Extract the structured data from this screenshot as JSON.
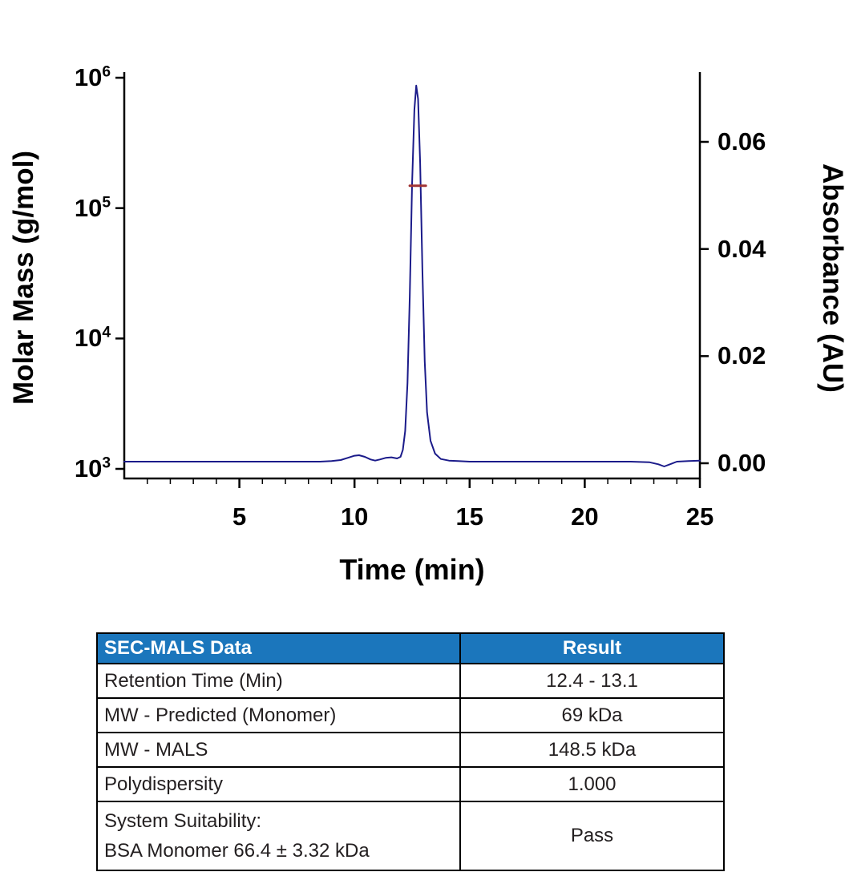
{
  "chart_data": {
    "type": "line",
    "title": "",
    "xlabel": "Time (min)",
    "ylabel_left": "Molar Mass (g/mol)",
    "ylabel_right": "Absorbance (AU)",
    "x_range": [
      0,
      25
    ],
    "x_ticks": [
      5,
      10,
      15,
      20,
      25
    ],
    "grid": false,
    "legend": "none",
    "left_axis": {
      "scale": "log",
      "range": [
        1000,
        1000000
      ],
      "ticks": [
        {
          "value": 1000,
          "base": "10",
          "sup": "3"
        },
        {
          "value": 10000,
          "base": "10",
          "sup": "4"
        },
        {
          "value": 100000,
          "base": "10",
          "sup": "5"
        },
        {
          "value": 1000000,
          "base": "10",
          "sup": "6"
        }
      ]
    },
    "right_axis": {
      "scale": "linear",
      "range": [
        0,
        0.072
      ],
      "ticks": [
        {
          "value": 0.0,
          "label": "0.00"
        },
        {
          "value": 0.02,
          "label": "0.02"
        },
        {
          "value": 0.04,
          "label": "0.04"
        },
        {
          "value": 0.06,
          "label": "0.06"
        }
      ]
    },
    "series": [
      {
        "name": "absorbance-uv-trace",
        "axis": "right",
        "color": "#1b1b8a",
        "width": 2,
        "x": [
          0,
          1,
          2,
          3,
          4,
          5,
          6,
          7,
          8,
          8.5,
          9,
          9.4,
          9.7,
          10.0,
          10.2,
          10.45,
          10.7,
          10.9,
          11.1,
          11.35,
          11.6,
          11.85,
          12.0,
          12.1,
          12.2,
          12.3,
          12.4,
          12.5,
          12.6,
          12.68,
          12.76,
          12.85,
          12.95,
          13.05,
          13.15,
          13.3,
          13.5,
          13.75,
          14.1,
          14.5,
          15,
          16,
          17,
          18,
          19,
          20,
          21,
          22,
          22.8,
          23.2,
          23.45,
          23.7,
          24.0,
          24.5,
          25
        ],
        "y": [
          0.0003,
          0.0003,
          0.0003,
          0.0003,
          0.0003,
          0.0003,
          0.0003,
          0.0003,
          0.0003,
          0.0003,
          0.0004,
          0.0006,
          0.001,
          0.0014,
          0.0015,
          0.0012,
          0.0007,
          0.0005,
          0.0007,
          0.001,
          0.0011,
          0.0009,
          0.0012,
          0.0025,
          0.006,
          0.015,
          0.031,
          0.052,
          0.066,
          0.0705,
          0.068,
          0.056,
          0.036,
          0.019,
          0.0095,
          0.0042,
          0.0018,
          0.0008,
          0.0005,
          0.0004,
          0.0003,
          0.0003,
          0.0003,
          0.0003,
          0.0003,
          0.0003,
          0.0003,
          0.0003,
          0.0002,
          -0.0002,
          -0.0006,
          -0.0002,
          0.0003,
          0.0004,
          0.0005
        ]
      },
      {
        "name": "molar-mass-mals",
        "axis": "left",
        "color": "#a03434",
        "width": 3,
        "x": [
          12.4,
          13.1
        ],
        "y": [
          148500,
          148500
        ]
      }
    ]
  },
  "table": {
    "header_bg": "#1b76bc",
    "header": {
      "col1": "SEC-MALS Data",
      "col2": "Result"
    },
    "rows": [
      {
        "label": "Retention Time (Min)",
        "value": "12.4 - 13.1"
      },
      {
        "label": "MW - Predicted (Monomer)",
        "value": "69 kDa"
      },
      {
        "label": "MW - MALS",
        "value": "148.5 kDa"
      },
      {
        "label": "Polydispersity",
        "value": "1.000"
      },
      {
        "label_line1": "System Suitability:",
        "label_line2": "BSA Monomer 66.4 ± 3.32 kDa",
        "value": "Pass"
      }
    ]
  }
}
